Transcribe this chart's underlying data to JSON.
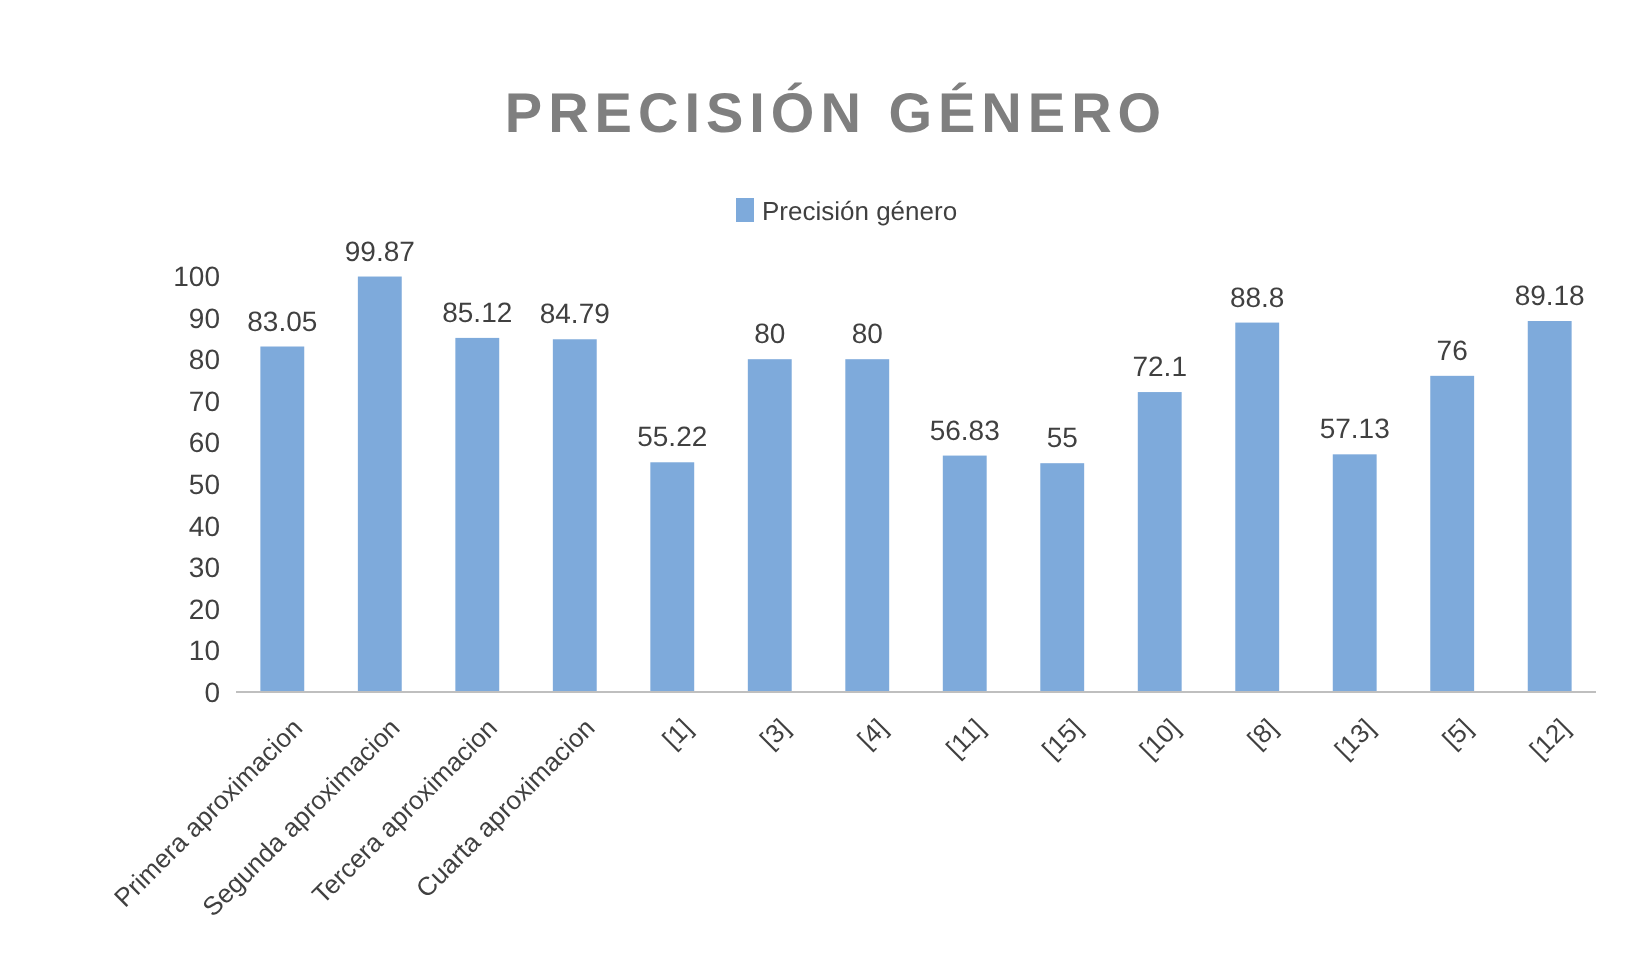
{
  "chart_data": {
    "type": "bar",
    "title": "PRECISIÓN GÉNERO",
    "categories": [
      "Primera aproximacion",
      "Segunda aproximacion",
      "Tercera aproximacion",
      "Cuarta aproximacion",
      "[1]",
      "[3]",
      "[4]",
      "[11]",
      "[15]",
      "[10]",
      "[8]",
      "[13]",
      "[5]",
      "[12]"
    ],
    "series": [
      {
        "name": "Precisión género",
        "color": "#7eaadb",
        "values": [
          83.05,
          99.87,
          85.12,
          84.79,
          55.22,
          80,
          80,
          56.83,
          55,
          72.1,
          88.8,
          57.13,
          76,
          89.18
        ]
      }
    ],
    "ylim": [
      0,
      100
    ],
    "yticks": [
      0,
      10,
      20,
      30,
      40,
      50,
      60,
      70,
      80,
      90,
      100
    ],
    "grid": false,
    "legend": "top",
    "data_labels": true
  }
}
